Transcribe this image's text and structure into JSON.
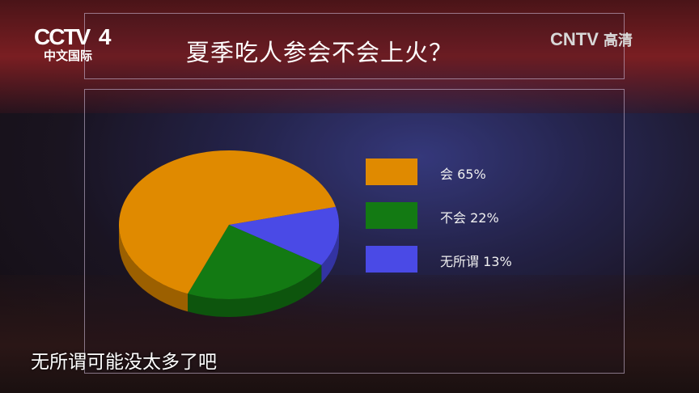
{
  "logo": {
    "channel": "CCTV",
    "number": "4",
    "subtitle": "中文国际"
  },
  "watermark": {
    "brand": "CNTV",
    "label": "高清"
  },
  "title": "夏季吃人参会不会上火？",
  "subtitle_caption": "无所谓可能没太多了吧",
  "chart_data": {
    "type": "pie",
    "style": "3d",
    "legend_position": "right",
    "slices": [
      {
        "label": "会",
        "value": 65,
        "display": "会 65%",
        "color": "#e08a00"
      },
      {
        "label": "不会",
        "value": 22,
        "display": "不会 22%",
        "color": "#137a13"
      },
      {
        "label": "无所谓",
        "value": 13,
        "display": "无所谓 13%",
        "color": "#4a4ae6"
      }
    ]
  }
}
